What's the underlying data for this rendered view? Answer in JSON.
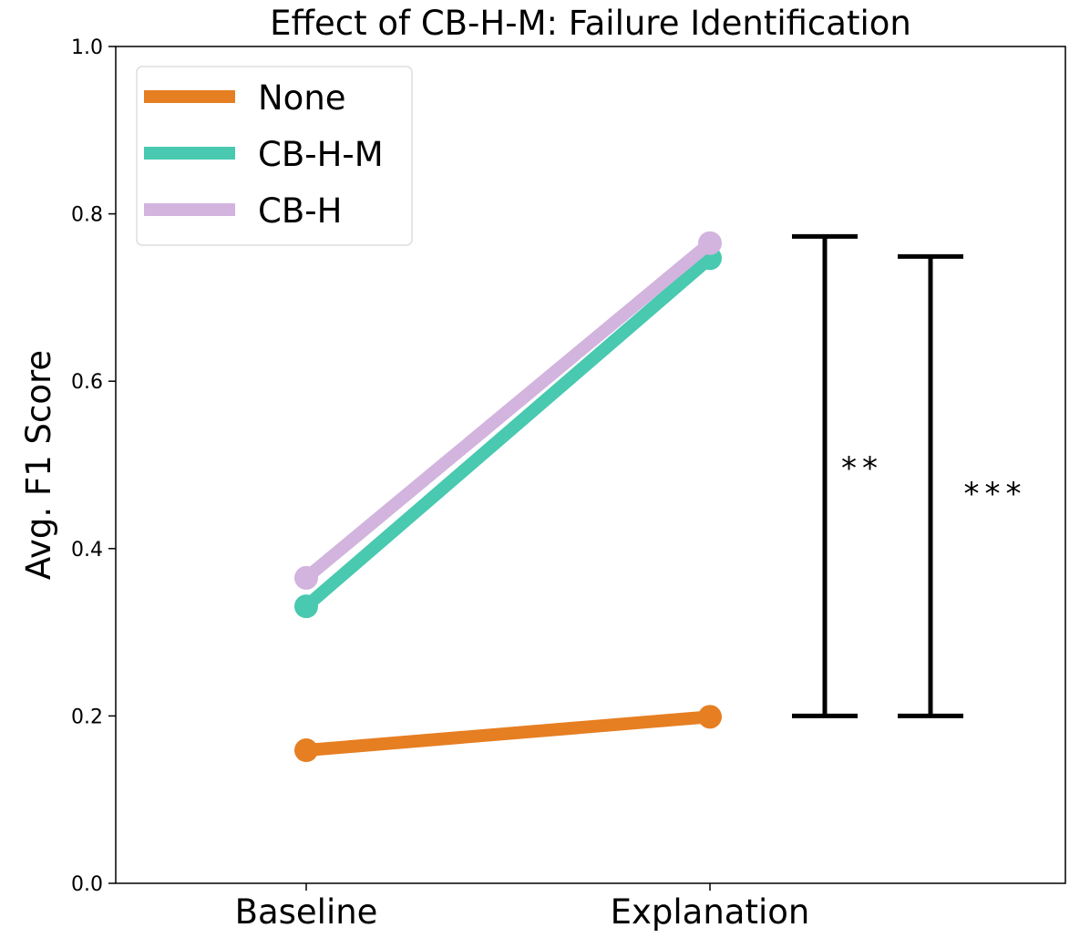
{
  "chart_data": {
    "type": "line",
    "title": "Effect of CB-H-M: Failure Identification",
    "xlabel": "",
    "ylabel": "Avg. F1 Score",
    "categories": [
      "Baseline",
      "Explanation"
    ],
    "ylim": [
      0.0,
      1.0
    ],
    "yticks": [
      "0.0",
      "0.2",
      "0.4",
      "0.6",
      "0.8",
      "1.0"
    ],
    "grid": false,
    "legend_position": "top-left",
    "series": [
      {
        "name": "None",
        "values": [
          0.159,
          0.199
        ],
        "color": "#e67e22"
      },
      {
        "name": "CB-H-M",
        "values": [
          0.331,
          0.747
        ],
        "color": "#48c9b0"
      },
      {
        "name": "CB-H",
        "values": [
          0.365,
          0.765
        ],
        "color": "#d2b4de"
      }
    ],
    "significance_brackets": [
      {
        "label": "**",
        "low": 0.2,
        "high": 0.773
      },
      {
        "label": "***",
        "low": 0.2,
        "high": 0.749
      }
    ]
  }
}
